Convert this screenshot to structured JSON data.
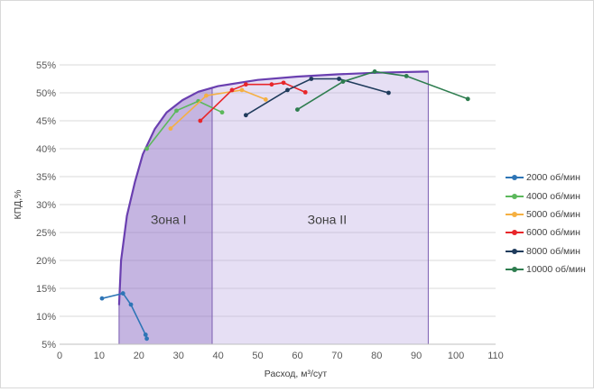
{
  "chart_data": {
    "type": "line",
    "xlabel": "Расход, м³/сут",
    "ylabel": "КПД,%",
    "xlim": [
      0,
      110
    ],
    "ylim": [
      5,
      55
    ],
    "x_ticks": [
      "0",
      "10",
      "20",
      "30",
      "40",
      "50",
      "60",
      "70",
      "80",
      "90",
      "100",
      "110"
    ],
    "y_ticks": [
      "5%",
      "10%",
      "15%",
      "20%",
      "25%",
      "30%",
      "35%",
      "40%",
      "45%",
      "50%",
      "55%"
    ],
    "grid": "horizontal",
    "legend_position": "right",
    "zones": [
      {
        "label": "Зона I",
        "x_range": [
          15,
          38.5
        ]
      },
      {
        "label": "Зона II",
        "x_range": [
          38.5,
          93
        ]
      }
    ],
    "envelope": [
      [
        15,
        12
      ],
      [
        15.5,
        20
      ],
      [
        17,
        28
      ],
      [
        19,
        34
      ],
      [
        21,
        39
      ],
      [
        24,
        43.5
      ],
      [
        27,
        46.5
      ],
      [
        31,
        48.7
      ],
      [
        35,
        50.2
      ],
      [
        40,
        51.2
      ],
      [
        50,
        52.3
      ],
      [
        60,
        52.9
      ],
      [
        70,
        53.3
      ],
      [
        80,
        53.6
      ],
      [
        93,
        53.8
      ]
    ],
    "series": [
      {
        "name": "2000 об/мин",
        "color": "#2e75b6",
        "x": [
          10.7,
          16,
          18,
          21.7,
          22
        ],
        "y": [
          13.2,
          14.1,
          12.1,
          6.7,
          6
        ]
      },
      {
        "name": "4000 об/мин",
        "color": "#5cb85c",
        "x": [
          22,
          29.5,
          35,
          41
        ],
        "y": [
          40,
          46.8,
          48.5,
          46.5
        ]
      },
      {
        "name": "5000 об/мин",
        "color": "#f5b042",
        "x": [
          28,
          37,
          46,
          52
        ],
        "y": [
          43.6,
          49.5,
          50.5,
          48.8
        ]
      },
      {
        "name": "6000 об/мин",
        "color": "#e8262a",
        "x": [
          35.5,
          43.5,
          47,
          53.5,
          56.5,
          62
        ],
        "y": [
          45,
          50.5,
          51.5,
          51.5,
          51.8,
          50.1
        ]
      },
      {
        "name": "8000 об/мин",
        "color": "#1f3b5c",
        "x": [
          47,
          57.5,
          63.5,
          70.5,
          83
        ],
        "y": [
          46,
          50.5,
          52.5,
          52.5,
          50
        ]
      },
      {
        "name": "10000 об/мин",
        "color": "#2e7d4f",
        "x": [
          60,
          71.5,
          79.5,
          87.5,
          103
        ],
        "y": [
          47,
          52,
          53.8,
          53,
          48.9
        ]
      }
    ]
  }
}
